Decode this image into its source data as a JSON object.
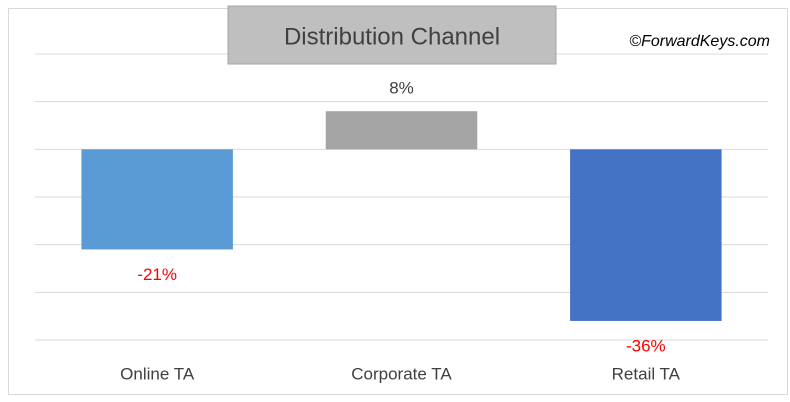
{
  "chart_data": {
    "type": "bar",
    "title": "Distribution Channel",
    "annotation": "©ForwardKeys.com",
    "categories": [
      "Online TA",
      "Corporate TA",
      "Retail TA"
    ],
    "values": [
      -21,
      8,
      -36
    ],
    "value_labels": [
      "-21%",
      "8%",
      "-36%"
    ],
    "colors": [
      "#5b9bd5",
      "#a5a5a5",
      "#4472c4"
    ],
    "label_color": "#ff0000",
    "ylim": [
      -40,
      20
    ],
    "yticks": [
      -40,
      -30,
      -20,
      -10,
      0,
      10,
      20
    ],
    "grid": true
  }
}
